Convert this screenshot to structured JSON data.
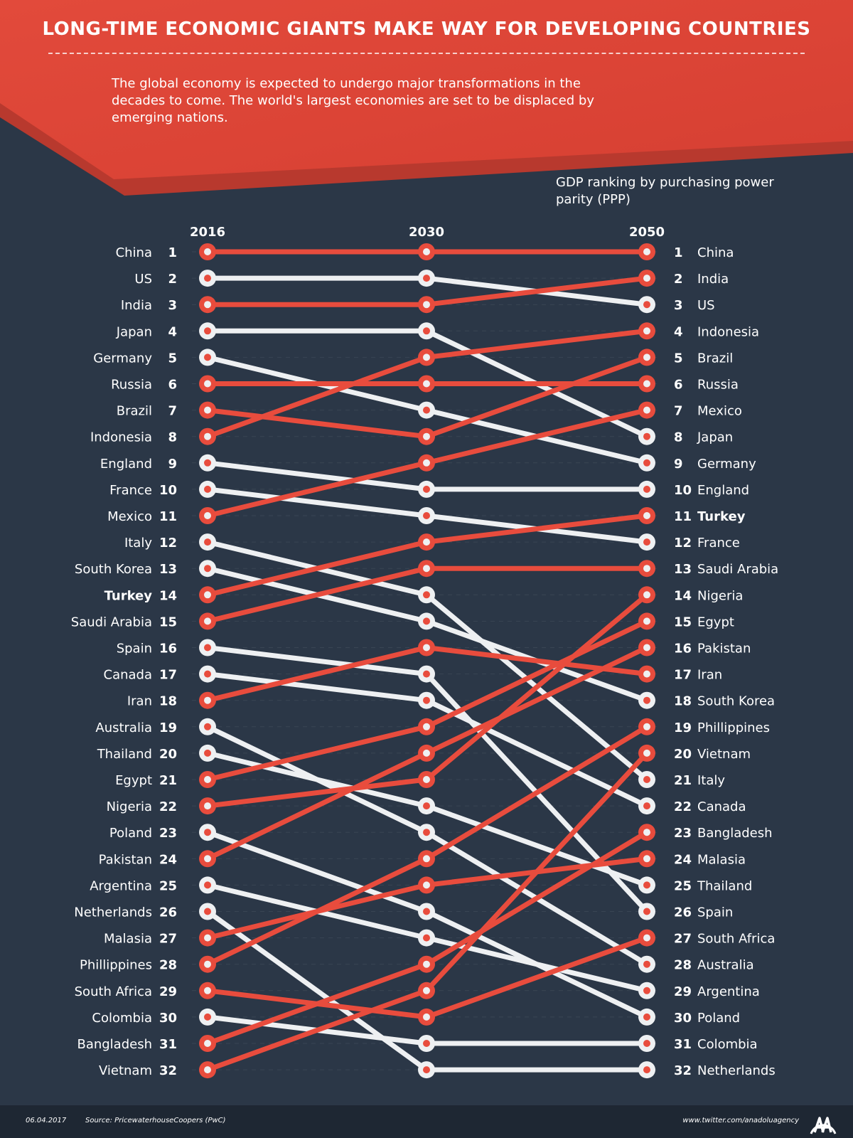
{
  "header": {
    "title": "LONG-TIME ECONOMIC GIANTS MAKE WAY FOR DEVELOPING COUNTRIES",
    "intro": "The global economy is expected to undergo major transformations in the decades to come. The world's largest economies are set to be displaced by emerging nations."
  },
  "colors": {
    "accent": "#e84c3d",
    "neutral": "#eef0f2",
    "background": "#2b3747",
    "footer": "#1e2733"
  },
  "chart_data": {
    "type": "slope",
    "title": "GDP ranking by purchasing power parity (PPP)",
    "columns": [
      "2016",
      "2030",
      "2050"
    ],
    "highlight": "Turkey",
    "series": [
      {
        "name": "China",
        "ranks": [
          1,
          1,
          1
        ],
        "color": "red"
      },
      {
        "name": "US",
        "ranks": [
          2,
          2,
          3
        ],
        "color": "white"
      },
      {
        "name": "India",
        "ranks": [
          3,
          3,
          2
        ],
        "color": "red"
      },
      {
        "name": "Japan",
        "ranks": [
          4,
          4,
          8
        ],
        "color": "white"
      },
      {
        "name": "Germany",
        "ranks": [
          5,
          7,
          9
        ],
        "color": "white"
      },
      {
        "name": "Russia",
        "ranks": [
          6,
          6,
          6
        ],
        "color": "red"
      },
      {
        "name": "Brazil",
        "ranks": [
          7,
          8,
          5
        ],
        "color": "red"
      },
      {
        "name": "Indonesia",
        "ranks": [
          8,
          5,
          4
        ],
        "color": "red"
      },
      {
        "name": "England",
        "ranks": [
          9,
          10,
          10
        ],
        "color": "white"
      },
      {
        "name": "France",
        "ranks": [
          10,
          11,
          12
        ],
        "color": "white"
      },
      {
        "name": "Mexico",
        "ranks": [
          11,
          9,
          7
        ],
        "color": "red"
      },
      {
        "name": "Italy",
        "ranks": [
          12,
          14,
          21
        ],
        "color": "white"
      },
      {
        "name": "South Korea",
        "ranks": [
          13,
          15,
          18
        ],
        "color": "white"
      },
      {
        "name": "Turkey",
        "ranks": [
          14,
          12,
          11
        ],
        "color": "red"
      },
      {
        "name": "Saudi Arabia",
        "ranks": [
          15,
          13,
          13
        ],
        "color": "red"
      },
      {
        "name": "Spain",
        "ranks": [
          16,
          17,
          26
        ],
        "color": "white"
      },
      {
        "name": "Canada",
        "ranks": [
          17,
          18,
          22
        ],
        "color": "white"
      },
      {
        "name": "Iran",
        "ranks": [
          18,
          16,
          17
        ],
        "color": "red"
      },
      {
        "name": "Australia",
        "ranks": [
          19,
          23,
          28
        ],
        "color": "white"
      },
      {
        "name": "Thailand",
        "ranks": [
          20,
          22,
          25
        ],
        "color": "white"
      },
      {
        "name": "Egypt",
        "ranks": [
          21,
          19,
          15
        ],
        "color": "red"
      },
      {
        "name": "Nigeria",
        "ranks": [
          22,
          21,
          14
        ],
        "color": "red"
      },
      {
        "name": "Poland",
        "ranks": [
          23,
          26,
          30
        ],
        "color": "white"
      },
      {
        "name": "Pakistan",
        "ranks": [
          24,
          20,
          16
        ],
        "color": "red"
      },
      {
        "name": "Argentina",
        "ranks": [
          25,
          27,
          29
        ],
        "color": "white"
      },
      {
        "name": "Netherlands",
        "ranks": [
          26,
          32,
          32
        ],
        "color": "white"
      },
      {
        "name": "Malasia",
        "ranks": [
          27,
          25,
          24
        ],
        "color": "red"
      },
      {
        "name": "Phillippines",
        "ranks": [
          28,
          24,
          19
        ],
        "color": "red"
      },
      {
        "name": "South Africa",
        "ranks": [
          29,
          30,
          27
        ],
        "color": "red"
      },
      {
        "name": "Colombia",
        "ranks": [
          30,
          31,
          31
        ],
        "color": "white"
      },
      {
        "name": "Bangladesh",
        "ranks": [
          31,
          28,
          23
        ],
        "color": "red"
      },
      {
        "name": "Vietnam",
        "ranks": [
          32,
          29,
          20
        ],
        "color": "red"
      }
    ]
  },
  "footer": {
    "date": "06.04.2017",
    "source": "Source: PricewaterhouseCoopers (PwC)",
    "twitter": "www.twitter.com/anadoluagency",
    "logo_icon": "anadolu-agency-logo-icon"
  }
}
